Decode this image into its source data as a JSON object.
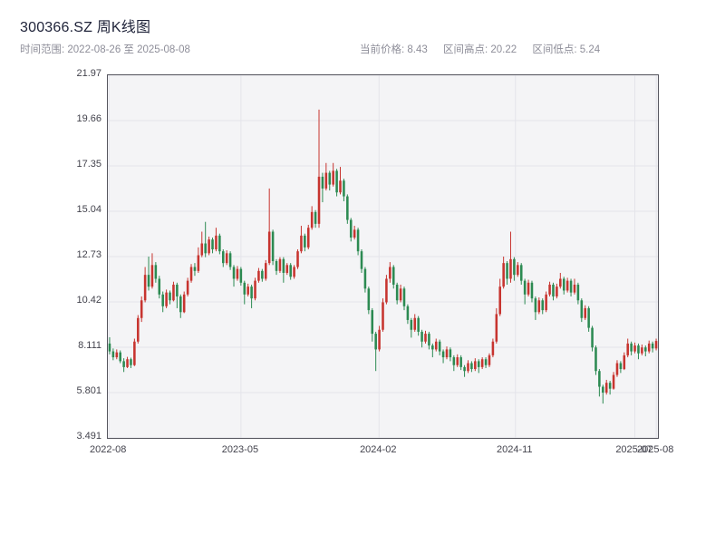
{
  "header": {
    "title": "300366.SZ 周K线图",
    "time_range": "时间范围: 2022-08-26 至 2025-08-08",
    "current_price": "当前价格: 8.43",
    "range_high": "区间高点: 20.22",
    "range_low": "区间低点: 5.24"
  },
  "colors": {
    "up": "#c7342f",
    "down": "#2c8a52",
    "plot_bg": "#f4f4f6",
    "grid": "#e4e4ea",
    "border": "#55555e",
    "tick_text": "#43434d"
  },
  "chart_data": {
    "type": "candlestick",
    "title": "300366.SZ 周K线图",
    "frequency": "weekly",
    "date_start": "2022-08-26",
    "date_end": "2025-08-08",
    "current_price": 8.43,
    "range_high": 20.22,
    "range_low": 5.24,
    "grid": true,
    "y_axis": {
      "min": 3.491,
      "max": 21.97,
      "tick_labels": [
        "21.97",
        "19.66",
        "17.35",
        "15.04",
        "12.73",
        "10.42",
        "8.111",
        "5.801",
        "3.491"
      ]
    },
    "x_axis": {
      "ticks": [
        {
          "label": "2022-08",
          "pos": 0.002
        },
        {
          "label": "2023-05",
          "pos": 0.242
        },
        {
          "label": "2024-02",
          "pos": 0.493
        },
        {
          "label": "2024-11",
          "pos": 0.741
        },
        {
          "label": "2025-07",
          "pos": 0.958
        },
        {
          "label": "2025-08",
          "pos": 0.997
        }
      ]
    },
    "candles_ohlc": [
      [
        8.3,
        8.62,
        7.75,
        7.9
      ],
      [
        7.9,
        8.05,
        7.45,
        7.6
      ],
      [
        7.6,
        8.0,
        7.5,
        7.85
      ],
      [
        7.85,
        7.95,
        7.3,
        7.4
      ],
      [
        7.4,
        7.55,
        6.85,
        7.1
      ],
      [
        7.1,
        7.62,
        7.05,
        7.5
      ],
      [
        7.5,
        7.58,
        7.05,
        7.2
      ],
      [
        7.2,
        8.55,
        7.15,
        8.4
      ],
      [
        8.4,
        9.75,
        8.3,
        9.6
      ],
      [
        9.6,
        10.7,
        9.4,
        10.5
      ],
      [
        10.5,
        12.2,
        10.4,
        11.8
      ],
      [
        11.8,
        12.73,
        11.0,
        11.2
      ],
      [
        11.2,
        12.9,
        11.1,
        12.3
      ],
      [
        12.3,
        12.45,
        11.4,
        11.6
      ],
      [
        11.6,
        11.75,
        10.6,
        10.8
      ],
      [
        10.8,
        10.95,
        9.9,
        10.2
      ],
      [
        10.2,
        11.05,
        10.1,
        10.9
      ],
      [
        10.9,
        11.0,
        10.3,
        10.5
      ],
      [
        10.5,
        11.45,
        10.45,
        11.3
      ],
      [
        11.3,
        11.4,
        10.1,
        10.7
      ],
      [
        10.7,
        10.8,
        9.6,
        9.9
      ],
      [
        9.9,
        10.95,
        9.85,
        10.8
      ],
      [
        10.8,
        11.65,
        10.7,
        11.5
      ],
      [
        11.5,
        12.35,
        11.4,
        12.2
      ],
      [
        12.2,
        12.4,
        11.75,
        12.0
      ],
      [
        12.0,
        13.2,
        11.9,
        12.8
      ],
      [
        12.8,
        14.0,
        12.7,
        13.4
      ],
      [
        13.4,
        14.5,
        12.7,
        12.9
      ],
      [
        12.9,
        13.75,
        12.8,
        13.6
      ],
      [
        13.6,
        13.7,
        12.9,
        13.1
      ],
      [
        13.1,
        14.2,
        13.0,
        13.8
      ],
      [
        13.8,
        13.9,
        12.85,
        13.0
      ],
      [
        13.0,
        13.1,
        12.2,
        12.4
      ],
      [
        12.4,
        13.05,
        12.3,
        12.9
      ],
      [
        12.9,
        13.0,
        12.05,
        12.2
      ],
      [
        12.2,
        12.3,
        11.2,
        11.6
      ],
      [
        11.6,
        12.25,
        11.5,
        12.1
      ],
      [
        12.1,
        12.2,
        11.25,
        11.4
      ],
      [
        11.4,
        11.5,
        10.3,
        10.8
      ],
      [
        10.8,
        11.35,
        10.7,
        11.2
      ],
      [
        11.2,
        11.3,
        10.1,
        10.6
      ],
      [
        10.6,
        11.65,
        10.5,
        11.5
      ],
      [
        11.5,
        12.15,
        11.4,
        12.0
      ],
      [
        12.0,
        12.1,
        11.45,
        11.6
      ],
      [
        11.6,
        12.55,
        11.5,
        12.4
      ],
      [
        12.4,
        16.2,
        12.3,
        14.0
      ],
      [
        14.0,
        14.1,
        12.3,
        12.5
      ],
      [
        12.5,
        12.6,
        11.8,
        12.0
      ],
      [
        12.0,
        12.7,
        11.9,
        12.6
      ],
      [
        12.6,
        12.7,
        11.4,
        11.9
      ],
      [
        11.9,
        12.4,
        11.8,
        12.3
      ],
      [
        12.3,
        12.4,
        11.55,
        11.7
      ],
      [
        11.7,
        12.3,
        11.6,
        12.2
      ],
      [
        12.2,
        13.1,
        12.1,
        13.0
      ],
      [
        13.0,
        14.3,
        12.9,
        13.8
      ],
      [
        13.8,
        13.9,
        13.0,
        13.2
      ],
      [
        13.2,
        14.35,
        13.1,
        14.2
      ],
      [
        14.2,
        15.3,
        14.1,
        15.0
      ],
      [
        15.0,
        15.1,
        14.2,
        14.4
      ],
      [
        14.4,
        20.22,
        14.2,
        16.8
      ],
      [
        16.8,
        17.0,
        15.5,
        16.2
      ],
      [
        16.2,
        17.5,
        16.1,
        17.0
      ],
      [
        17.0,
        17.1,
        16.1,
        16.4
      ],
      [
        16.4,
        17.5,
        16.3,
        17.1
      ],
      [
        17.1,
        17.2,
        15.8,
        16.0
      ],
      [
        16.0,
        17.3,
        15.9,
        16.6
      ],
      [
        16.6,
        16.7,
        15.55,
        15.8
      ],
      [
        15.8,
        15.9,
        14.4,
        14.6
      ],
      [
        14.6,
        14.7,
        13.5,
        13.7
      ],
      [
        13.7,
        14.3,
        13.6,
        14.1
      ],
      [
        14.1,
        14.2,
        12.8,
        13.0
      ],
      [
        13.0,
        13.1,
        11.9,
        12.1
      ],
      [
        12.1,
        12.2,
        10.9,
        11.1
      ],
      [
        11.1,
        11.2,
        9.8,
        10.0
      ],
      [
        10.0,
        10.1,
        8.4,
        8.8
      ],
      [
        8.8,
        8.9,
        6.9,
        8.0
      ],
      [
        8.0,
        9.2,
        7.9,
        9.0
      ],
      [
        9.0,
        10.6,
        8.9,
        10.4
      ],
      [
        10.4,
        11.8,
        10.3,
        11.6
      ],
      [
        11.6,
        12.45,
        11.4,
        12.2
      ],
      [
        12.2,
        12.3,
        11.1,
        11.3
      ],
      [
        11.3,
        11.4,
        10.3,
        10.5
      ],
      [
        10.5,
        11.3,
        10.4,
        11.1
      ],
      [
        11.1,
        11.2,
        10.0,
        10.2
      ],
      [
        10.2,
        10.3,
        9.3,
        9.5
      ],
      [
        9.5,
        9.6,
        8.6,
        9.0
      ],
      [
        9.0,
        9.8,
        8.9,
        9.6
      ],
      [
        9.6,
        9.7,
        8.7,
        8.9
      ],
      [
        8.9,
        9.0,
        8.1,
        8.4
      ],
      [
        8.4,
        8.95,
        8.3,
        8.8
      ],
      [
        8.8,
        8.9,
        8.0,
        8.2
      ],
      [
        8.2,
        8.3,
        7.6,
        8.0
      ],
      [
        8.0,
        8.55,
        7.9,
        8.4
      ],
      [
        8.4,
        8.5,
        7.7,
        7.9
      ],
      [
        7.9,
        8.0,
        7.3,
        7.6
      ],
      [
        7.6,
        8.15,
        7.5,
        8.0
      ],
      [
        8.0,
        8.1,
        7.4,
        7.6
      ],
      [
        7.6,
        7.7,
        6.9,
        7.2
      ],
      [
        7.2,
        7.75,
        7.1,
        7.6
      ],
      [
        7.6,
        7.7,
        6.95,
        7.1
      ],
      [
        7.1,
        7.2,
        6.6,
        6.9
      ],
      [
        6.9,
        7.45,
        6.8,
        7.3
      ],
      [
        7.3,
        7.4,
        6.85,
        7.0
      ],
      [
        7.0,
        7.55,
        6.9,
        7.4
      ],
      [
        7.4,
        7.5,
        6.8,
        7.1
      ],
      [
        7.1,
        7.6,
        7.0,
        7.5
      ],
      [
        7.5,
        7.6,
        7.05,
        7.2
      ],
      [
        7.2,
        7.8,
        7.1,
        7.7
      ],
      [
        7.7,
        8.55,
        7.6,
        8.4
      ],
      [
        8.4,
        10.1,
        8.3,
        9.8
      ],
      [
        9.8,
        11.6,
        9.7,
        11.2
      ],
      [
        11.2,
        12.73,
        11.1,
        12.4
      ],
      [
        12.4,
        12.5,
        11.3,
        11.6
      ],
      [
        11.6,
        14.0,
        11.4,
        12.6
      ],
      [
        12.6,
        12.7,
        11.5,
        11.8
      ],
      [
        11.8,
        12.45,
        11.7,
        12.3
      ],
      [
        12.3,
        12.4,
        11.3,
        11.5
      ],
      [
        11.5,
        11.6,
        10.3,
        10.8
      ],
      [
        10.8,
        11.55,
        10.7,
        11.4
      ],
      [
        11.4,
        11.5,
        10.4,
        10.6
      ],
      [
        10.6,
        10.7,
        9.5,
        9.9
      ],
      [
        9.9,
        10.65,
        9.8,
        10.5
      ],
      [
        10.5,
        10.6,
        9.8,
        10.0
      ],
      [
        10.0,
        10.95,
        9.9,
        10.8
      ],
      [
        10.8,
        11.45,
        10.7,
        11.3
      ],
      [
        11.3,
        11.4,
        10.5,
        10.7
      ],
      [
        10.7,
        11.35,
        10.6,
        11.2
      ],
      [
        11.2,
        11.9,
        11.1,
        11.6
      ],
      [
        11.6,
        11.7,
        10.8,
        11.0
      ],
      [
        11.0,
        11.65,
        10.9,
        11.5
      ],
      [
        11.5,
        11.6,
        10.7,
        10.9
      ],
      [
        10.9,
        11.6,
        10.8,
        11.3
      ],
      [
        11.3,
        11.4,
        10.3,
        10.5
      ],
      [
        10.5,
        10.6,
        9.4,
        9.6
      ],
      [
        9.6,
        10.25,
        9.5,
        10.1
      ],
      [
        10.1,
        10.2,
        8.9,
        9.1
      ],
      [
        9.1,
        9.2,
        7.9,
        8.1
      ],
      [
        8.1,
        8.2,
        6.7,
        6.9
      ],
      [
        6.9,
        7.0,
        5.6,
        6.1
      ],
      [
        6.1,
        6.2,
        5.24,
        5.8
      ],
      [
        5.8,
        6.45,
        5.7,
        6.3
      ],
      [
        6.3,
        6.4,
        5.7,
        6.0
      ],
      [
        6.0,
        6.85,
        5.95,
        6.7
      ],
      [
        6.7,
        7.45,
        6.6,
        7.3
      ],
      [
        7.3,
        7.4,
        6.8,
        7.0
      ],
      [
        7.0,
        7.85,
        6.95,
        7.7
      ],
      [
        7.7,
        8.55,
        7.6,
        8.3
      ],
      [
        8.3,
        8.4,
        7.7,
        7.9
      ],
      [
        7.9,
        8.35,
        7.8,
        8.2
      ],
      [
        8.2,
        8.3,
        7.5,
        7.8
      ],
      [
        7.8,
        8.25,
        7.7,
        8.1
      ],
      [
        8.1,
        8.2,
        7.65,
        7.9
      ],
      [
        7.9,
        8.45,
        7.8,
        8.3
      ],
      [
        8.3,
        8.4,
        7.85,
        8.05
      ],
      [
        8.05,
        8.55,
        7.95,
        8.43
      ]
    ]
  }
}
